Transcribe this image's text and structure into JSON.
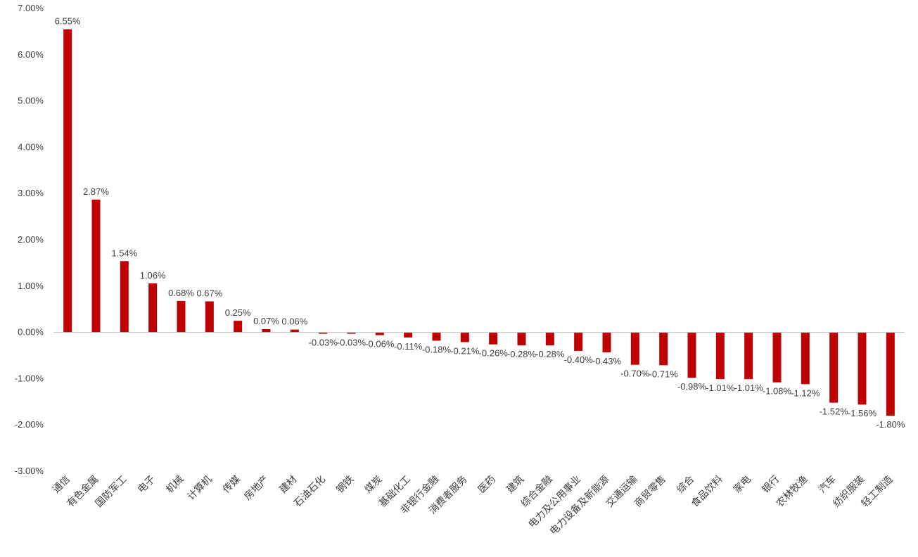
{
  "chart_data": {
    "type": "bar",
    "title": "",
    "xlabel": "",
    "ylabel": "",
    "ylim": [
      -3.0,
      7.0
    ],
    "yticks": [
      7.0,
      6.0,
      5.0,
      4.0,
      3.0,
      2.0,
      1.0,
      0.0,
      -1.0,
      -2.0,
      -3.0
    ],
    "ytick_labels": [
      "7.00%",
      "6.00%",
      "5.00%",
      "4.00%",
      "3.00%",
      "2.00%",
      "1.00%",
      "0.00%",
      "-1.00%",
      "-2.00%",
      "-3.00%"
    ],
    "grid": false,
    "bar_color": "#C00000",
    "axis_color": "#BFBFBF",
    "categories": [
      "通信",
      "有色金属",
      "国防军工",
      "电子",
      "机械",
      "计算机",
      "传媒",
      "房地产",
      "建材",
      "石油石化",
      "钢铁",
      "煤炭",
      "基础化工",
      "非银行金融",
      "消费者服务",
      "医药",
      "建筑",
      "综合金融",
      "电力及公用事业",
      "电力设备及新能源",
      "交通运输",
      "商贸零售",
      "综合",
      "食品饮料",
      "家电",
      "银行",
      "农林牧渔",
      "汽车",
      "纺织服装",
      "轻工制造"
    ],
    "values": [
      6.55,
      2.87,
      1.54,
      1.06,
      0.68,
      0.67,
      0.25,
      0.07,
      0.06,
      -0.03,
      -0.03,
      -0.06,
      -0.11,
      -0.18,
      -0.21,
      -0.26,
      -0.28,
      -0.28,
      -0.4,
      -0.43,
      -0.7,
      -0.71,
      -0.98,
      -1.01,
      -1.01,
      -1.08,
      -1.12,
      -1.52,
      -1.56,
      -1.8
    ],
    "value_labels": [
      "6.55%",
      "2.87%",
      "1.54%",
      "1.06%",
      "0.68%",
      "0.67%",
      "0.25%",
      "0.07%",
      "0.06%",
      "-0.03%",
      "-0.03%",
      "-0.06%",
      "-0.11%",
      "-0.18%",
      "-0.21%",
      "-0.26%",
      "-0.28%",
      "-0.28%",
      "-0.40%",
      "-0.43%",
      "-0.70%",
      "-0.71%",
      "-0.98%",
      "-1.01%",
      "-1.01%",
      "-1.08%",
      "-1.12%",
      "-1.52%",
      "-1.56%",
      "-1.80%"
    ]
  }
}
